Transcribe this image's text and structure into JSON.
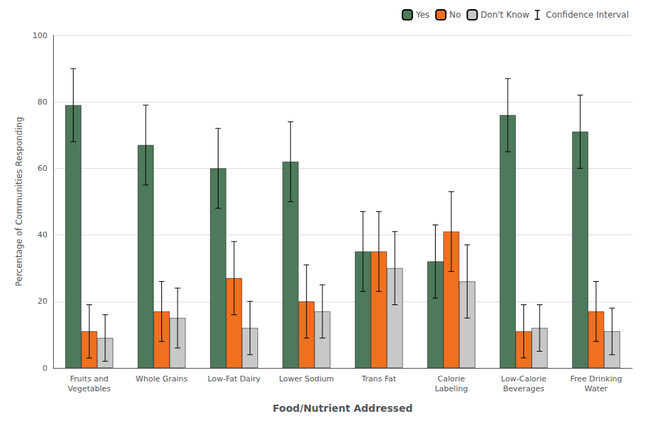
{
  "chart_data": {
    "type": "bar",
    "xlabel": "Food/Nutrient Addressed",
    "ylabel": "Percentage of Communities Responding",
    "categories": [
      "Fruits and\nVegetables",
      "Whole Grains",
      "Low-Fat Dairy",
      "Lower Sodium",
      "Trans Fat",
      "Calorie\nLabeling",
      "Low-Calorie\nBeverages",
      "Free Drinking\nWater"
    ],
    "series": [
      {
        "name": "Yes",
        "color": "#4d7a5a",
        "values": [
          79,
          67,
          60,
          62,
          35,
          32,
          76,
          71
        ],
        "errors": [
          11,
          12,
          12,
          12,
          12,
          11,
          11,
          11
        ]
      },
      {
        "name": "No",
        "color": "#f07020",
        "values": [
          11,
          17,
          27,
          20,
          35,
          41,
          11,
          17
        ],
        "errors": [
          8,
          9,
          11,
          11,
          12,
          12,
          8,
          9
        ]
      },
      {
        "name": "Don't Know",
        "color": "#c8c8c8",
        "values": [
          9,
          15,
          12,
          17,
          30,
          26,
          12,
          11
        ],
        "errors": [
          7,
          9,
          8,
          8,
          11,
          11,
          7,
          7
        ]
      }
    ],
    "error_bar_label": "Confidence Interval",
    "ylim": [
      0,
      100
    ],
    "yticks": [
      0,
      20,
      40,
      60,
      80,
      100
    ],
    "grid": true,
    "legend": "upper right"
  }
}
